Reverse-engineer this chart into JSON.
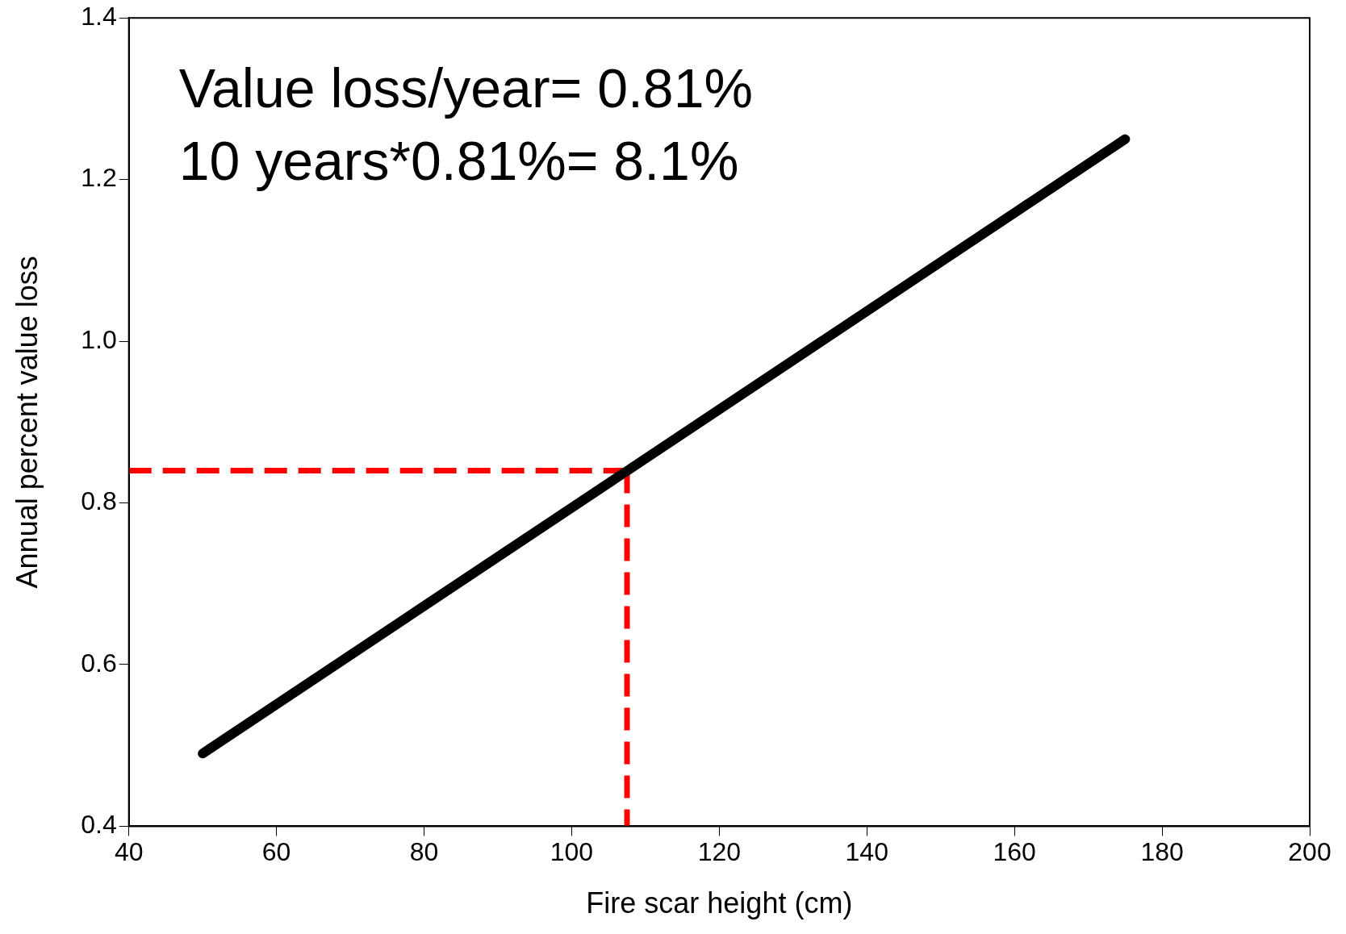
{
  "chart_data": {
    "type": "line",
    "xlabel": "Fire scar height (cm)",
    "ylabel": "Annual percent value loss",
    "annotations": [
      "Value loss/year= 0.81%",
      "10 years*0.81%= 8.1%"
    ],
    "series": [
      {
        "x": [
          50,
          175
        ],
        "values": [
          0.49,
          1.25
        ],
        "color": "#000000",
        "line_style": "solid"
      },
      {
        "x": [
          40,
          107.5
        ],
        "values": [
          0.84,
          0.84
        ],
        "color": "#ff0000",
        "line_style": "dashed"
      },
      {
        "x": [
          107.5,
          107.5
        ],
        "values": [
          0.84,
          0.4
        ],
        "color": "#ff0000",
        "line_style": "dashed"
      }
    ],
    "xlim": [
      40,
      200
    ],
    "xticks": [
      40,
      60,
      80,
      100,
      120,
      140,
      160,
      180,
      200
    ],
    "ylim": [
      0.4,
      1.4
    ],
    "yticks": [
      {
        "value": 0.4,
        "label": "0.4"
      },
      {
        "value": 0.6,
        "label": "0.6"
      },
      {
        "value": 0.8,
        "label": "0.8"
      },
      {
        "value": 1.0,
        "label": "1.0"
      },
      {
        "value": 1.2,
        "label": "1.2"
      },
      {
        "value": 1.4,
        "label": "1.4"
      }
    ],
    "grid": false,
    "legend": false,
    "marker": "none"
  }
}
